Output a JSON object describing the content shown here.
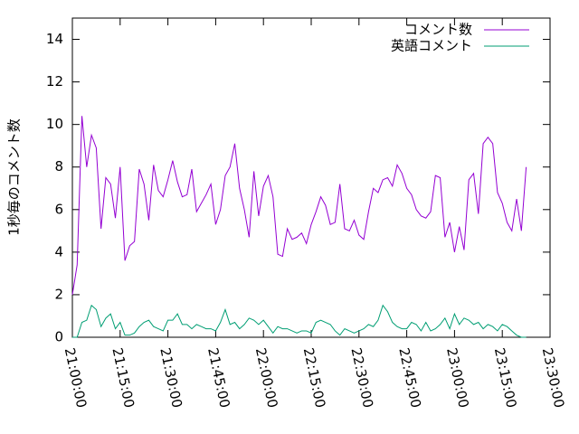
{
  "chart_data": {
    "type": "line",
    "ylabel": "1秒毎のコメント数",
    "x": [
      "21:00:00",
      "21:01:30",
      "21:03:00",
      "21:04:30",
      "21:06:00",
      "21:07:30",
      "21:09:00",
      "21:10:30",
      "21:12:00",
      "21:13:30",
      "21:15:00",
      "21:16:30",
      "21:18:00",
      "21:19:30",
      "21:21:00",
      "21:22:30",
      "21:24:00",
      "21:25:30",
      "21:27:00",
      "21:28:30",
      "21:30:00",
      "21:31:30",
      "21:33:00",
      "21:34:30",
      "21:36:00",
      "21:37:30",
      "21:39:00",
      "21:40:30",
      "21:42:00",
      "21:43:30",
      "21:45:00",
      "21:46:30",
      "21:48:00",
      "21:49:30",
      "21:51:00",
      "21:52:30",
      "21:54:00",
      "21:55:30",
      "21:57:00",
      "21:58:30",
      "22:00:00",
      "22:01:30",
      "22:03:00",
      "22:04:30",
      "22:06:00",
      "22:07:30",
      "22:09:00",
      "22:10:30",
      "22:12:00",
      "22:13:30",
      "22:15:00",
      "22:16:30",
      "22:18:00",
      "22:19:30",
      "22:21:00",
      "22:22:30",
      "22:24:00",
      "22:25:30",
      "22:27:00",
      "22:28:30",
      "22:30:00",
      "22:31:30",
      "22:33:00",
      "22:34:30",
      "22:36:00",
      "22:37:30",
      "22:39:00",
      "22:40:30",
      "22:42:00",
      "22:43:30",
      "22:45:00",
      "22:46:30",
      "22:48:00",
      "22:49:30",
      "22:51:00",
      "22:52:30",
      "22:54:00",
      "22:55:30",
      "22:57:00",
      "22:58:30",
      "23:00:00",
      "23:01:30",
      "23:03:00",
      "23:04:30",
      "23:06:00",
      "23:07:30",
      "23:09:00",
      "23:10:30",
      "23:12:00",
      "23:13:30",
      "23:15:00",
      "23:16:30",
      "23:18:00",
      "23:19:30",
      "23:21:00",
      "23:22:30"
    ],
    "series": [
      {
        "name": "コメント数",
        "color": "#9400d3",
        "values": [
          2.0,
          3.4,
          10.4,
          8.0,
          9.5,
          8.9,
          5.1,
          7.5,
          7.2,
          5.6,
          8.0,
          3.6,
          4.3,
          4.5,
          7.9,
          7.2,
          5.5,
          8.1,
          6.9,
          6.6,
          7.4,
          8.3,
          7.3,
          6.6,
          6.7,
          7.9,
          5.9,
          6.3,
          6.7,
          7.2,
          5.3,
          6.0,
          7.6,
          8.0,
          9.1,
          7.0,
          6.0,
          4.7,
          7.8,
          5.7,
          7.1,
          7.6,
          6.6,
          3.9,
          3.8,
          5.1,
          4.6,
          4.7,
          4.9,
          4.4,
          5.3,
          5.9,
          6.6,
          6.2,
          5.3,
          5.4,
          7.2,
          5.1,
          5.0,
          5.5,
          4.8,
          4.6,
          5.9,
          7.0,
          6.8,
          7.4,
          7.5,
          7.1,
          8.1,
          7.7,
          7.0,
          6.7,
          6.0,
          5.7,
          5.6,
          5.9,
          7.6,
          7.5,
          4.7,
          5.4,
          4.0,
          5.2,
          4.1,
          7.4,
          7.7,
          5.8,
          9.1,
          9.4,
          9.1,
          6.8,
          6.3,
          5.4,
          5.0,
          6.5,
          5.0,
          8.0
        ]
      },
      {
        "name": "英語コメント",
        "color": "#009e73",
        "values": [
          0,
          0,
          0.7,
          0.8,
          1.5,
          1.3,
          0.5,
          0.9,
          1.1,
          0.4,
          0.7,
          0.1,
          0.1,
          0.2,
          0.5,
          0.7,
          0.8,
          0.5,
          0.4,
          0.3,
          0.8,
          0.8,
          1.1,
          0.6,
          0.6,
          0.4,
          0.6,
          0.5,
          0.4,
          0.4,
          0.3,
          0.7,
          1.3,
          0.6,
          0.7,
          0.4,
          0.6,
          0.9,
          0.8,
          0.6,
          0.8,
          0.5,
          0.2,
          0.5,
          0.4,
          0.4,
          0.3,
          0.2,
          0.3,
          0.3,
          0.2,
          0.7,
          0.8,
          0.7,
          0.6,
          0.3,
          0.1,
          0.4,
          0.3,
          0.2,
          0.3,
          0.4,
          0.6,
          0.5,
          0.8,
          1.5,
          1.2,
          0.7,
          0.5,
          0.4,
          0.4,
          0.7,
          0.6,
          0.3,
          0.7,
          0.3,
          0.4,
          0.6,
          0.9,
          0.4,
          1.1,
          0.6,
          0.9,
          0.8,
          0.6,
          0.7,
          0.4,
          0.6,
          0.5,
          0.3,
          0.6,
          0.5,
          0.3,
          0.1,
          0,
          0
        ]
      }
    ],
    "xlim": [
      "21:00:00",
      "23:30:00"
    ],
    "xticks": [
      "21:00:00",
      "21:15:00",
      "21:30:00",
      "21:45:00",
      "22:00:00",
      "22:15:00",
      "22:30:00",
      "22:45:00",
      "23:00:00",
      "23:15:00",
      "23:30:00"
    ],
    "ylim": [
      0,
      15
    ],
    "yticks": [
      0,
      2,
      4,
      6,
      8,
      10,
      12,
      14
    ],
    "legend": "top-right"
  }
}
